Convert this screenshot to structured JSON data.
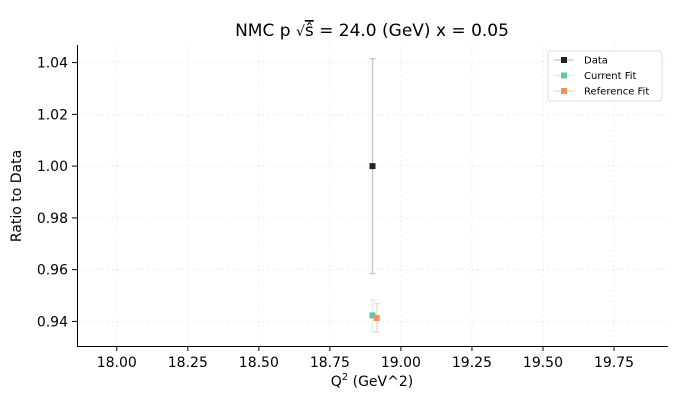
{
  "chart_data": {
    "type": "scatter",
    "title": "NMC p √ŝ = 24.0 (GeV) x = 0.05",
    "title_parts": {
      "prefix": "NMC p ",
      "sqrt_symbol": "√",
      "s_hat": "ŝ",
      "suffix": " = 24.0 (GeV) x = 0.05"
    },
    "xlabel": "Q² (GeV^2)",
    "xlabel_parts": {
      "q": "Q",
      "sup": "2",
      "rest": " (GeV^2)"
    },
    "ylabel": "Ratio to Data",
    "xlim": [
      17.86,
      19.94
    ],
    "ylim": [
      0.9305,
      1.0468
    ],
    "x_ticks": [
      18.0,
      18.25,
      18.5,
      18.75,
      19.0,
      19.25,
      19.5,
      19.75
    ],
    "x_tick_labels": [
      "18.00",
      "18.25",
      "18.50",
      "18.75",
      "19.00",
      "19.25",
      "19.50",
      "19.75"
    ],
    "y_ticks": [
      0.94,
      0.96,
      0.98,
      1.0,
      1.02,
      1.04
    ],
    "y_tick_labels": [
      "0.94",
      "0.96",
      "0.98",
      "1.00",
      "1.02",
      "1.04"
    ],
    "grid": true,
    "legend_position": "top-right",
    "series": [
      {
        "name": "Data",
        "color": "#222222",
        "errcolor": "#c8c8c8",
        "points": [
          {
            "x": 18.9,
            "y": 1.0,
            "yerr": 0.0415
          }
        ]
      },
      {
        "name": "Current Fit",
        "color": "#66c2a5",
        "errcolor": "#d9efe7",
        "points": [
          {
            "x": 18.9,
            "y": 0.9423,
            "yerr": 0.006
          }
        ]
      },
      {
        "name": "Reference Fit",
        "color": "#fc8d62",
        "errcolor": "#f7d8cb",
        "points": [
          {
            "x": 18.915,
            "y": 0.9413,
            "yerr": 0.0055
          }
        ]
      }
    ]
  }
}
